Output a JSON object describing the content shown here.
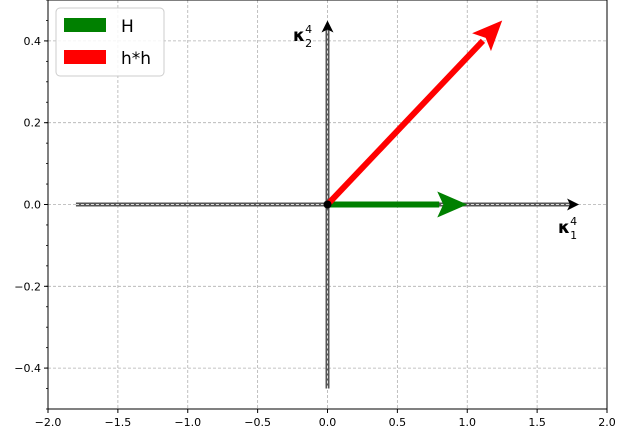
{
  "chart_data": {
    "type": "vector",
    "xlim": [
      -2.0,
      2.0
    ],
    "ylim": [
      -0.5,
      0.5
    ],
    "xticks": [
      -2.0,
      -1.5,
      -1.0,
      -0.5,
      0.0,
      0.5,
      1.0,
      1.5,
      2.0
    ],
    "yticks": [
      -0.4,
      -0.2,
      0.0,
      0.2,
      0.4
    ],
    "xtick_labels": [
      "−2.0",
      "−1.5",
      "−1.0",
      "−0.5",
      "0.0",
      "0.5",
      "1.0",
      "1.5",
      "2.0"
    ],
    "ytick_labels": [
      "−0.4",
      "−0.2",
      "0.0",
      "0.2",
      "0.4"
    ],
    "grid": true,
    "legend_position": "top-left",
    "axes_lines": {
      "horizontal": {
        "from": -1.8,
        "to": 1.8
      },
      "vertical": {
        "from": -0.45,
        "to": 0.45
      },
      "origin": [
        0,
        0
      ]
    },
    "axis_labels": {
      "x": {
        "base": "κ",
        "sub": "1",
        "sup": "4"
      },
      "y": {
        "base": "κ",
        "sub": "2",
        "sup": "4"
      }
    },
    "series": [
      {
        "name": "H",
        "color": "#008000",
        "from": [
          0,
          0
        ],
        "to": [
          1.0,
          0.0
        ]
      },
      {
        "name": "h*h",
        "color": "#ff0000",
        "from": [
          0,
          0
        ],
        "to": [
          1.25,
          0.45
        ]
      }
    ]
  }
}
